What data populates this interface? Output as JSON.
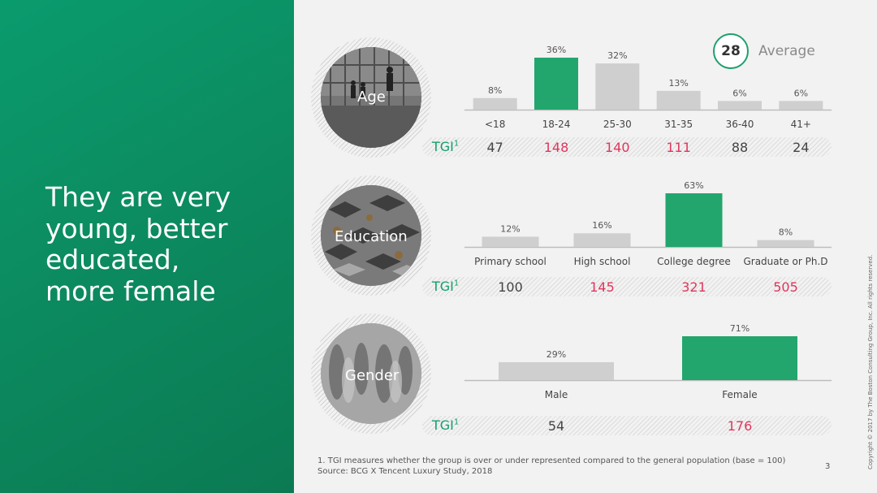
{
  "headline": [
    "They are very",
    "young, better",
    "educated,",
    "more female"
  ],
  "average": {
    "value": "28",
    "label": "Average"
  },
  "tgi_label": "TGI",
  "tgi_superscript": "1",
  "colors": {
    "green": "#12a06b",
    "bar_green": "#22a66d",
    "bar_grey": "#cfcfcf",
    "tgi_red": "#e0355c",
    "tgi_normal": "#444444"
  },
  "icons": {
    "age": "people-in-hall-photo",
    "education": "graduation-caps-photo",
    "gender": "walking-crowd-photo"
  },
  "footnote": "1. TGI measures whether the group is over or under represented compared to the general population (base = 100)",
  "source": "Source: BCG X Tencent Luxury Study, 2018",
  "page_number": "3",
  "copyright": "Copyright © 2017 by The Boston Consulting Group, Inc. All rights reserved.",
  "chart_data": [
    {
      "type": "bar",
      "title": "Age",
      "categories": [
        "<18",
        "18-24",
        "25-30",
        "31-35",
        "36-40",
        "41+"
      ],
      "values": [
        8,
        36,
        32,
        13,
        6,
        6
      ],
      "labels": [
        "8%",
        "36%",
        "32%",
        "13%",
        "6%",
        "6%"
      ],
      "highlight": [
        false,
        true,
        false,
        false,
        false,
        false
      ],
      "tgi": [
        "47",
        "148",
        "140",
        "111",
        "88",
        "24"
      ],
      "tgi_high": [
        false,
        true,
        true,
        true,
        false,
        false
      ]
    },
    {
      "type": "bar",
      "title": "Education",
      "categories": [
        "Primary school",
        "High school",
        "College degree",
        "Graduate or Ph.D"
      ],
      "values": [
        12,
        16,
        63,
        8
      ],
      "labels": [
        "12%",
        "16%",
        "63%",
        "8%"
      ],
      "highlight": [
        false,
        false,
        true,
        false
      ],
      "tgi": [
        "100",
        "145",
        "321",
        "505"
      ],
      "tgi_high": [
        false,
        true,
        true,
        true
      ]
    },
    {
      "type": "bar",
      "title": "Gender",
      "categories": [
        "Male",
        "Female"
      ],
      "values": [
        29,
        71
      ],
      "labels": [
        "29%",
        "71%"
      ],
      "highlight": [
        false,
        true
      ],
      "tgi": [
        "54",
        "176"
      ],
      "tgi_high": [
        false,
        true
      ]
    }
  ]
}
